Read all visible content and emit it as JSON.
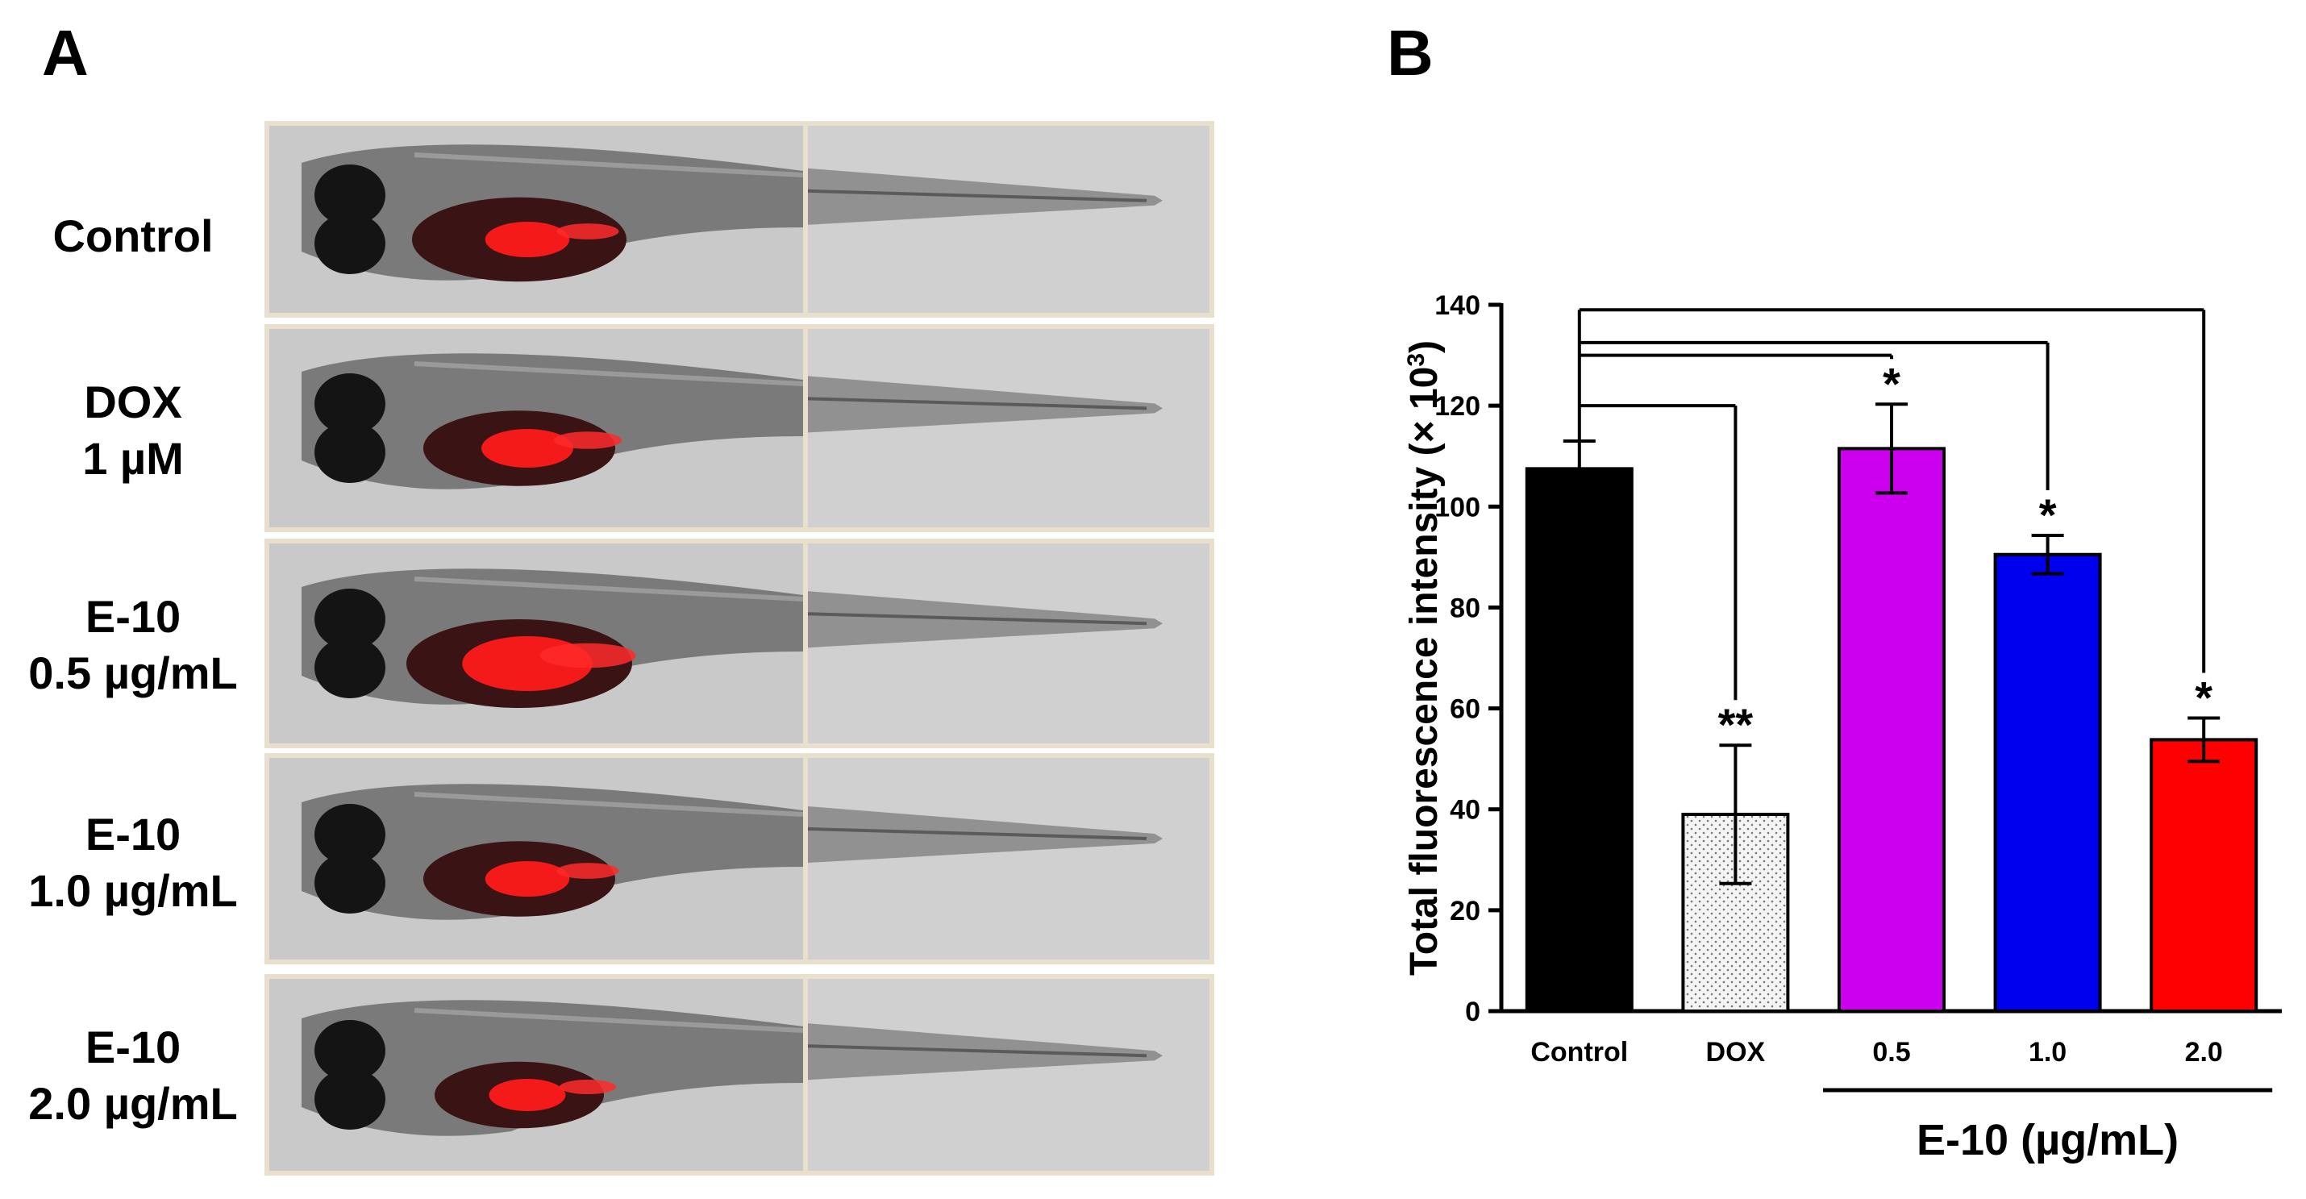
{
  "panel_a": {
    "letter": "A",
    "rows": [
      {
        "line1": "Control",
        "line2": ""
      },
      {
        "line1": "DOX",
        "line2": "1 µM"
      },
      {
        "line1": "E-10",
        "line2": "0.5 µg/mL"
      },
      {
        "line1": "E-10",
        "line2": "1.0 µg/mL"
      },
      {
        "line1": "E-10",
        "line2": "2.0 µg/mL"
      }
    ]
  },
  "panel_b": {
    "letter": "B"
  },
  "chart_data": {
    "type": "bar",
    "ylabel": "Total fluorescence intensity",
    "ylabel_unit": "(× 10",
    "ylabel_unit_exp": "3",
    "ylabel_unit_close": ")",
    "ylim": [
      0,
      140
    ],
    "yticks": [
      0,
      20,
      40,
      60,
      80,
      100,
      120,
      140
    ],
    "categories": [
      "Control",
      "DOX",
      "0.5",
      "1.0",
      "2.0"
    ],
    "values": [
      107.5,
      39,
      111.5,
      90.5,
      53.8
    ],
    "errors": [
      5.5,
      13.7,
      8.8,
      3.8,
      4.3
    ],
    "colors": [
      "#000000",
      "#f2f2f2",
      "#cc00ee",
      "#0000ee",
      "#ff0000"
    ],
    "significance": [
      "",
      "**",
      "*",
      "*",
      "*"
    ],
    "group_label": "E-10  (µg/mL)",
    "group_categories": [
      "0.5",
      "1.0",
      "2.0"
    ]
  }
}
